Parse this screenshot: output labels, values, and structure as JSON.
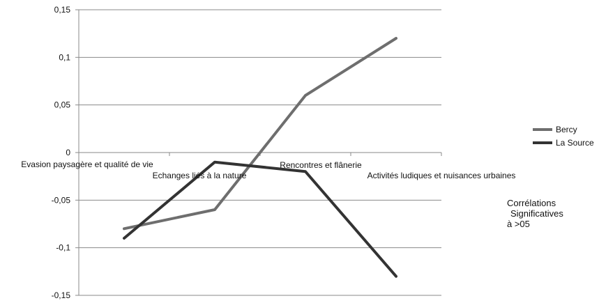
{
  "chart_data": {
    "type": "line",
    "categories": [
      "Evasion paysagère et qualité de vie",
      "Echanges liés à la nature",
      "Rencontres et flânerie",
      "Activités ludiques et nuisances urbaines"
    ],
    "series": [
      {
        "name": "Bercy",
        "values": [
          -0.08,
          -0.06,
          0.06,
          0.12
        ],
        "color": "#6e6e6e"
      },
      {
        "name": "La Source",
        "values": [
          -0.09,
          -0.01,
          -0.02,
          -0.13
        ],
        "color": "#333333"
      }
    ],
    "yticks": [
      "0,15",
      "0,1",
      "0,05",
      "0",
      "-0,05",
      "-0,1",
      "-0,15"
    ],
    "ytick_values": [
      0.15,
      0.1,
      0.05,
      0,
      -0.05,
      -0.1,
      -0.15
    ],
    "ylim": [
      -0.15,
      0.15
    ],
    "grid": true,
    "legend": "right",
    "annotation": [
      "Corrélations",
      "Significatives",
      "à >05"
    ]
  }
}
